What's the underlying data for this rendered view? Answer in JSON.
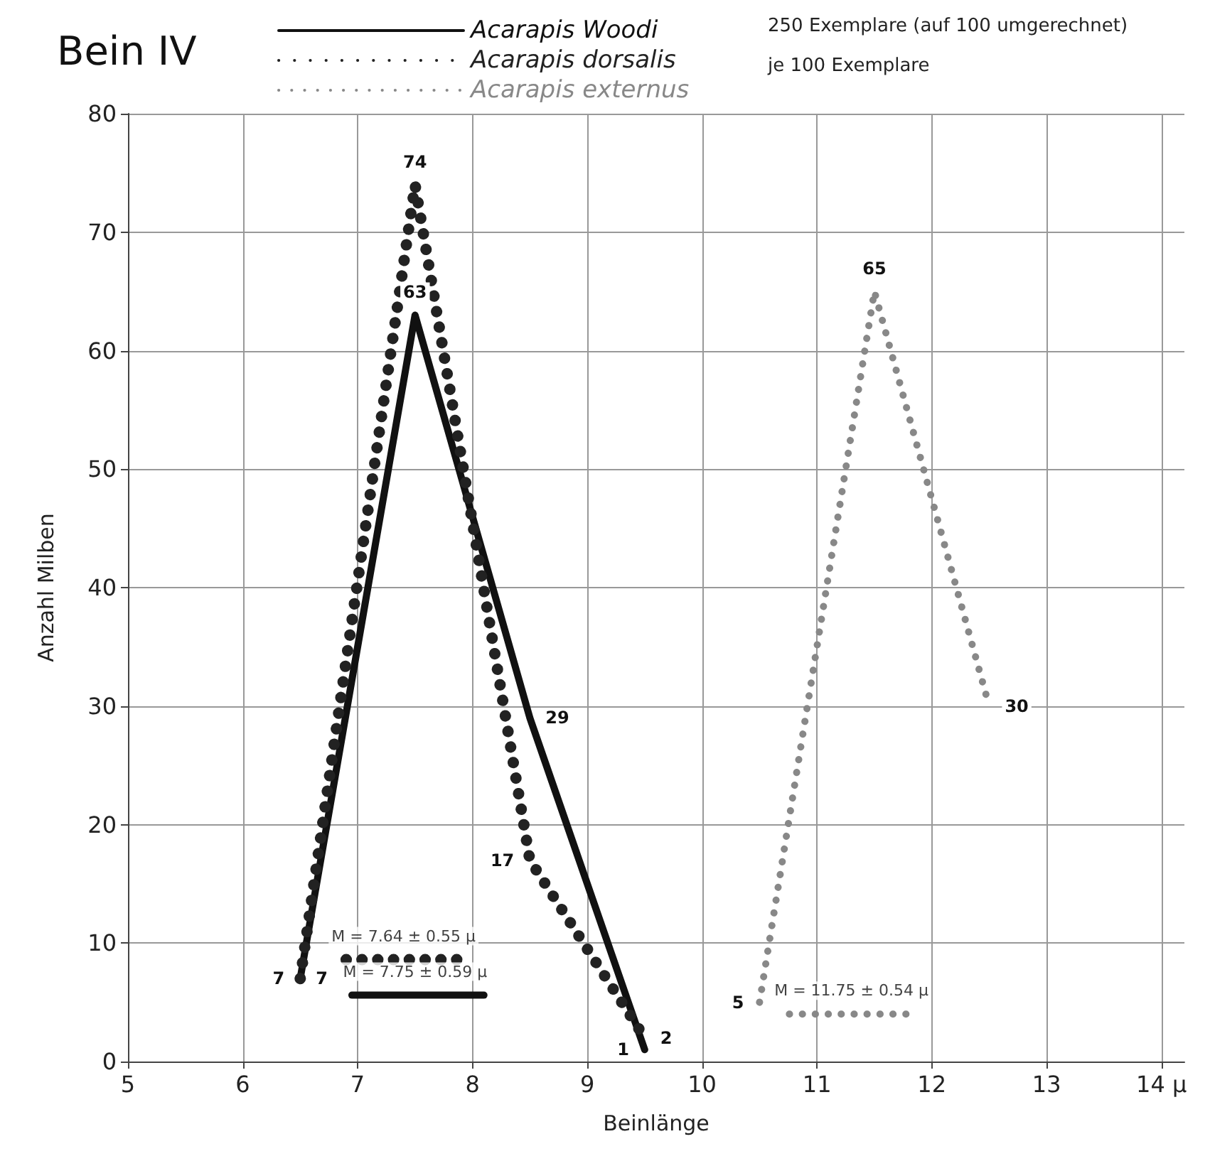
{
  "chart_data": {
    "type": "line",
    "title": "Bein IV",
    "xlabel": "Beinlänge",
    "ylabel": "Anzahl Milben",
    "xlim": [
      5,
      14.2
    ],
    "xticks": [
      5,
      6,
      7,
      8,
      9,
      10,
      11,
      12,
      13,
      {
        "value": 14,
        "label": "14 μ"
      }
    ],
    "ylim": [
      0,
      80
    ],
    "yticks": [
      0,
      10,
      20,
      30,
      40,
      50,
      60,
      70,
      80
    ],
    "grid": true,
    "legend": "top",
    "series": [
      {
        "name": "Acarapis Woodi",
        "color": "#111111",
        "line_style": "solid",
        "x": [
          6.5,
          7.5,
          8.5,
          9.5
        ],
        "values": [
          7,
          63,
          29,
          1
        ],
        "value_labels": [
          "7",
          "63",
          "29",
          "1"
        ]
      },
      {
        "name": "Acarapis dorsalis",
        "color": "#222222",
        "line_style": "dotted",
        "x": [
          6.5,
          7.5,
          8.5,
          9.5
        ],
        "values": [
          7,
          74,
          17,
          2
        ],
        "value_labels": [
          "7",
          "74",
          "17",
          "2"
        ]
      },
      {
        "name": "Acarapis externus",
        "color": "#888888",
        "line_style": "dashed",
        "x": [
          10.5,
          11.5,
          12.5
        ],
        "values": [
          5,
          65,
          30
        ],
        "value_labels": [
          "5",
          "65",
          "30"
        ]
      },
      {
        "color": "#222222",
        "line_style": "dotted",
        "x": [
          6.9,
          7.9
        ],
        "values": [
          8.6,
          8.6
        ]
      },
      {
        "color": "#111111",
        "line_style": "solid",
        "x": [
          6.95,
          8.1
        ],
        "values": [
          5.6,
          5.6
        ]
      },
      {
        "color": "#888888",
        "line_style": "dashed",
        "x": [
          10.76,
          11.78
        ],
        "values": [
          4,
          4
        ]
      }
    ],
    "annotations": [
      "250 Exemplare (auf 100 umgerechnet)",
      "je 100 Exemplare",
      {
        "text": "M = 7.64 ± 0.55 μ",
        "x": 7.4,
        "y": 8.6
      },
      {
        "text": "M = 7.75 ± 0.59 μ",
        "x": 7.5,
        "y": 5.6
      },
      {
        "text": "M = 11.75 ± 0.54 μ",
        "x": 11.3,
        "y": 4
      }
    ]
  }
}
